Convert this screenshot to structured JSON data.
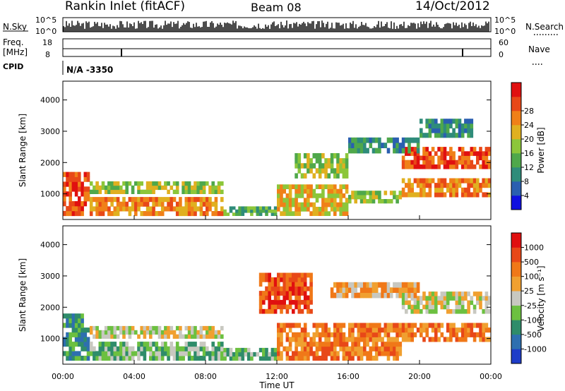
{
  "header": {
    "station": "Rankin Inlet (fitACF)",
    "beam": "Beam 08",
    "date": "14/Oct/2012"
  },
  "strip_panels": {
    "nsky": {
      "label": "N.Sky",
      "right_label": "N.Search",
      "y_ticks": [
        "10^5",
        "10^0"
      ],
      "right_ticks": [
        "10^5",
        "10^0"
      ]
    },
    "freq": {
      "label_line1": "Freq.",
      "label_line2": "[MHz]",
      "y_ticks": [
        "18",
        "8"
      ],
      "right_label": "Nave",
      "right_ticks": [
        "60",
        "0"
      ]
    },
    "cpid": {
      "label": "CPID",
      "value": "N/A -3350"
    }
  },
  "chart_data": [
    {
      "type": "heatmap",
      "panel": "power",
      "ylabel": "Slant Range [km]",
      "y_ticks": [
        1000,
        2000,
        3000,
        4000
      ],
      "ylim": [
        180,
        4600
      ],
      "xlim": [
        0,
        24
      ],
      "colorbar": {
        "label": "Power [dB]",
        "ticks": [
          "4",
          "8",
          "12",
          "16",
          "20",
          "24",
          "28"
        ],
        "colors": [
          "#1010e0",
          "#2a5fb0",
          "#2f8c7a",
          "#4fa84b",
          "#8cc63a",
          "#e0b020",
          "#f08018",
          "#e84818",
          "#e01010"
        ]
      },
      "regions": [
        {
          "t0": 0.0,
          "t1": 1.5,
          "r0": 300,
          "r1": 1700,
          "level": 7
        },
        {
          "t0": 1.5,
          "t1": 9.0,
          "r0": 300,
          "r1": 900,
          "level": 6
        },
        {
          "t0": 1.5,
          "t1": 9.0,
          "r0": 1000,
          "r1": 1400,
          "level": 4
        },
        {
          "t0": 9.0,
          "t1": 12.0,
          "r0": 300,
          "r1": 600,
          "level": 3
        },
        {
          "t0": 12.0,
          "t1": 16.0,
          "r0": 300,
          "r1": 1300,
          "level": 5
        },
        {
          "t0": 13.0,
          "t1": 16.0,
          "r0": 1500,
          "r1": 2300,
          "level": 4
        },
        {
          "t0": 16.0,
          "t1": 19.0,
          "r0": 700,
          "r1": 1100,
          "level": 4
        },
        {
          "t0": 19.0,
          "t1": 24.0,
          "r0": 900,
          "r1": 1500,
          "level": 6
        },
        {
          "t0": 19.0,
          "t1": 24.0,
          "r0": 1800,
          "r1": 2500,
          "level": 7
        },
        {
          "t0": 16.0,
          "t1": 20.0,
          "r0": 2300,
          "r1": 2800,
          "level": 2
        },
        {
          "t0": 20.0,
          "t1": 23.0,
          "r0": 2800,
          "r1": 3400,
          "level": 2
        }
      ]
    },
    {
      "type": "heatmap",
      "panel": "velocity",
      "ylabel": "Slant Range [km]",
      "y_ticks": [
        1000,
        2000,
        3000,
        4000
      ],
      "ylim": [
        180,
        4600
      ],
      "xlim": [
        0,
        24
      ],
      "xlabel": "Time UT",
      "x_ticks": [
        "00:00",
        "04:00",
        "08:00",
        "12:00",
        "16:00",
        "20:00",
        "00:00"
      ],
      "colorbar": {
        "label": "Velocity [m s⁻¹]",
        "ticks": [
          "1000",
          "500",
          "100",
          "25",
          "-25",
          "-100",
          "-500",
          "-1000"
        ],
        "colors": [
          "#1e3cc8",
          "#2e6fb0",
          "#2f8c6a",
          "#6cc040",
          "#c8c8c0",
          "#f0a030",
          "#f07818",
          "#e84818",
          "#e01010"
        ]
      },
      "regions": [
        {
          "t0": 0.0,
          "t1": 1.5,
          "r0": 300,
          "r1": 1800,
          "level": 2
        },
        {
          "t0": 1.5,
          "t1": 9.0,
          "r0": 300,
          "r1": 900,
          "level": 3
        },
        {
          "t0": 1.5,
          "t1": 9.0,
          "r0": 1000,
          "r1": 1400,
          "level": 4
        },
        {
          "t0": 9.0,
          "t1": 12.0,
          "r0": 300,
          "r1": 700,
          "level": 3
        },
        {
          "t0": 11.0,
          "t1": 14.0,
          "r0": 1800,
          "r1": 3100,
          "level": 7
        },
        {
          "t0": 12.0,
          "t1": 19.0,
          "r0": 300,
          "r1": 1500,
          "level": 6
        },
        {
          "t0": 19.0,
          "t1": 24.0,
          "r0": 900,
          "r1": 1500,
          "level": 6
        },
        {
          "t0": 19.0,
          "t1": 24.0,
          "r0": 1800,
          "r1": 2500,
          "level": 4
        },
        {
          "t0": 15.0,
          "t1": 20.0,
          "r0": 2300,
          "r1": 2800,
          "level": 5
        }
      ]
    }
  ]
}
